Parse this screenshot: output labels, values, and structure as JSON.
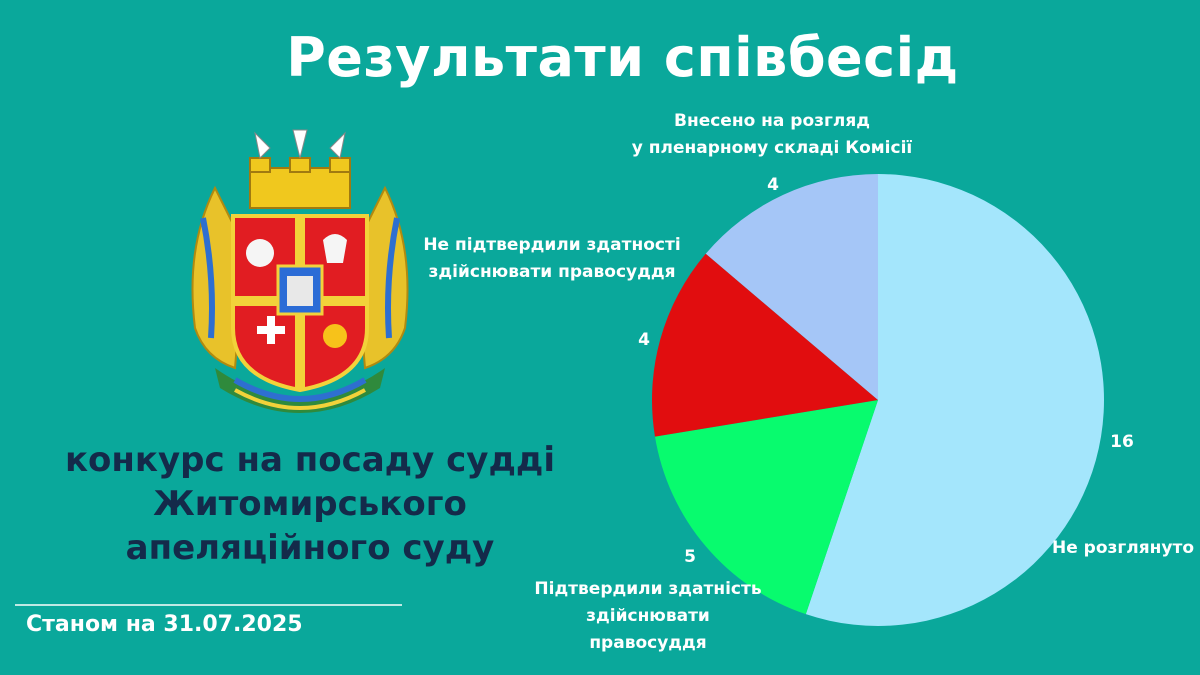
{
  "title": "Результати співбесід",
  "subtitle_lines": [
    "конкурс на посаду судді",
    "Житомирського",
    "апеляційного суду"
  ],
  "date_text": "Станом на 31.07.2025",
  "colors": {
    "background": "#0aa89b",
    "subtitle_text": "#142a4a"
  },
  "chart_data": {
    "type": "pie",
    "title": "",
    "slices": [
      {
        "label_lines": [
          "Не розглянуто"
        ],
        "value": 16,
        "color": "#a4e6fc"
      },
      {
        "label_lines": [
          "Підтвердили здатність",
          "здійснювати",
          "правосуддя"
        ],
        "value": 5,
        "color": "#08fb6e"
      },
      {
        "label_lines": [
          "Не підтвердили здатності",
          "здійснювати правосуддя"
        ],
        "value": 4,
        "color": "#e10d0f"
      },
      {
        "label_lines": [
          "Внесено на розгляд",
          "у пленарному складі Комісії"
        ],
        "value": 4,
        "color": "#a5c6f7"
      }
    ]
  }
}
